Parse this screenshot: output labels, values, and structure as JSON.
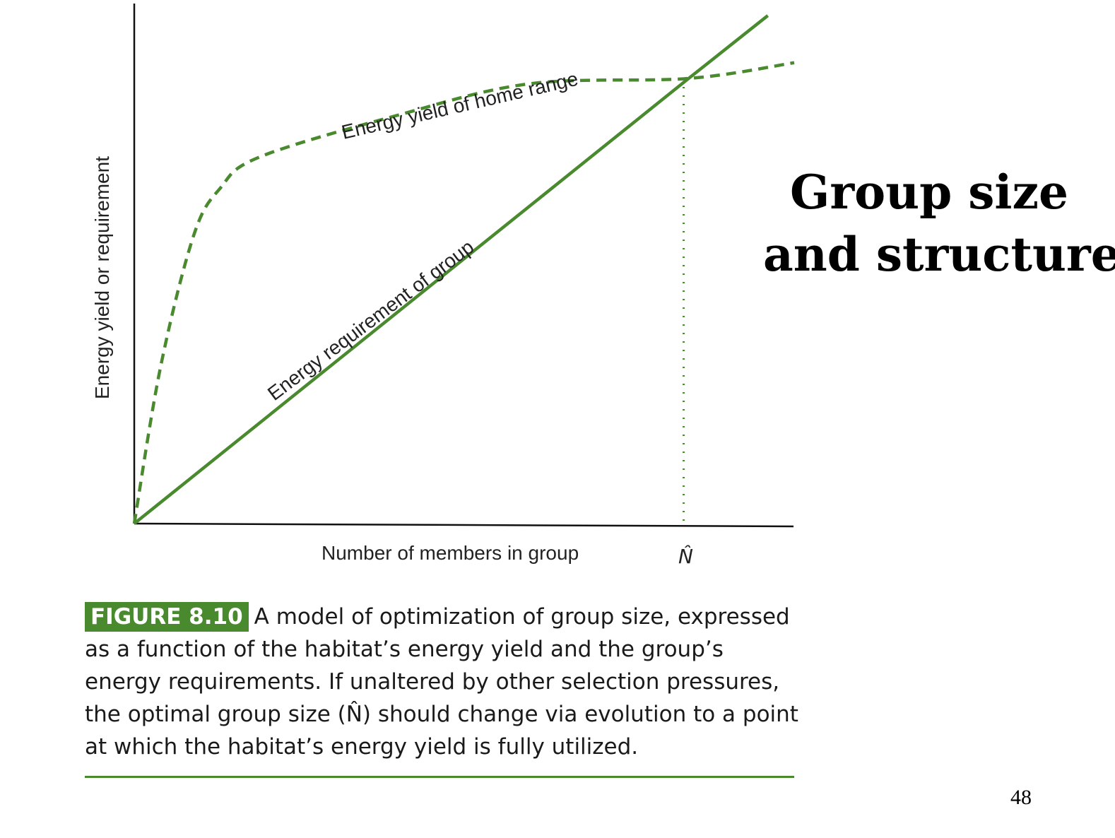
{
  "slide": {
    "title_line1": "Group size",
    "title_line2": "and structure",
    "page_number": "48"
  },
  "caption": {
    "figure_label": "FIGURE 8.10",
    "text": "A model of optimization of group size, expressed as a function of the habitat’s energy yield and the group’s energy requirements. If unaltered by other selection pressures, the optimal group size (N̂) should change via evolution to a point at which the habitat’s energy yield is fully utilized."
  },
  "colors": {
    "line": "#4a8a2e",
    "axis": "#111111",
    "label_bg": "#4a8a2e"
  },
  "chart_data": {
    "type": "line",
    "xlabel": "Number of members in group",
    "ylabel": "Energy yield or requirement",
    "x_marker_label": "N̂",
    "series": [
      {
        "name": "Energy yield of home range",
        "style": "dashed",
        "points": [
          [
            0,
            0
          ],
          [
            0.04,
            0.3
          ],
          [
            0.09,
            0.55
          ],
          [
            0.13,
            0.64
          ],
          [
            0.19,
            0.7
          ],
          [
            0.4,
            0.78
          ],
          [
            0.6,
            0.84
          ],
          [
            0.84,
            0.85
          ],
          [
            1.0,
            0.88
          ]
        ]
      },
      {
        "name": "Energy requirement of group",
        "style": "solid",
        "points": [
          [
            0,
            0
          ],
          [
            0.84,
            0.85
          ],
          [
            0.96,
            0.97
          ]
        ]
      }
    ],
    "intersection": {
      "x": 0.84,
      "y": 0.85,
      "label": "N̂",
      "line_style": "dotted"
    }
  }
}
